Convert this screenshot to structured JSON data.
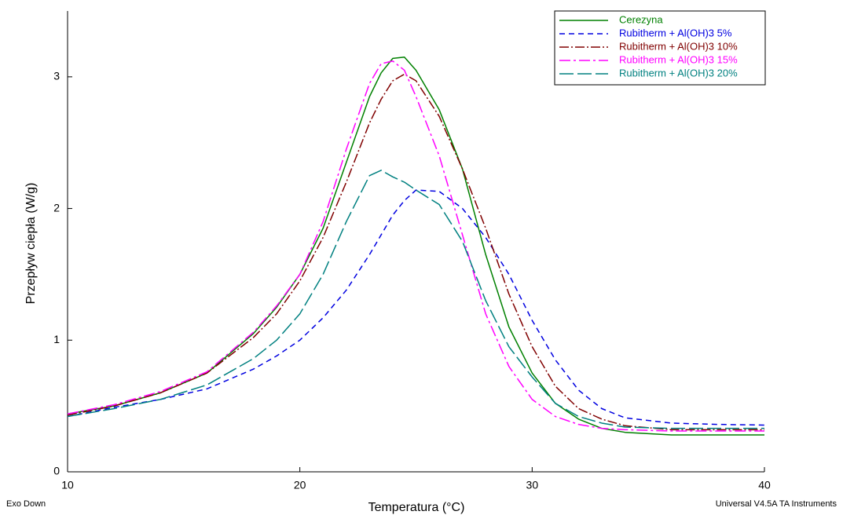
{
  "chart_data": {
    "type": "line",
    "xlabel": "Temperatura (°C)",
    "ylabel": "Przepływ ciepła (W/g)",
    "footer_left": "Exo Down",
    "footer_right": "Universal V4.5A TA Instruments",
    "xlim": [
      10,
      40
    ],
    "xticks": [
      10,
      20,
      30,
      40
    ],
    "ylim": [
      0,
      3.5
    ],
    "yticks": [
      0,
      1,
      2,
      3
    ],
    "legend": "upper right",
    "x": [
      10,
      12,
      14,
      16,
      18,
      19,
      20,
      21,
      22,
      23,
      23.5,
      24,
      24.5,
      25,
      26,
      27,
      28,
      29,
      30,
      31,
      32,
      33,
      34,
      36,
      38,
      40
    ],
    "series": [
      {
        "name": "Cerezyna",
        "color": "#008000",
        "dash": "none",
        "values": [
          0.44,
          0.5,
          0.6,
          0.75,
          1.05,
          1.25,
          1.5,
          1.85,
          2.35,
          2.85,
          3.03,
          3.14,
          3.15,
          3.05,
          2.75,
          2.3,
          1.65,
          1.1,
          0.75,
          0.52,
          0.4,
          0.33,
          0.3,
          0.28,
          0.28,
          0.28
        ]
      },
      {
        "name": "Rubitherm + Al(OH)3 5%",
        "color": "#0000e0",
        "dash": "7,5",
        "values": [
          0.42,
          0.49,
          0.55,
          0.63,
          0.78,
          0.88,
          1.0,
          1.17,
          1.38,
          1.65,
          1.8,
          1.95,
          2.06,
          2.14,
          2.13,
          2.0,
          1.78,
          1.5,
          1.15,
          0.85,
          0.62,
          0.48,
          0.41,
          0.37,
          0.36,
          0.355
        ]
      },
      {
        "name": "Rubitherm + Al(OH)3 10%",
        "color": "#800000",
        "dash": "12,3,2,3",
        "values": [
          0.43,
          0.5,
          0.6,
          0.75,
          1.02,
          1.2,
          1.45,
          1.78,
          2.2,
          2.65,
          2.83,
          2.97,
          3.02,
          2.97,
          2.7,
          2.3,
          1.85,
          1.35,
          0.95,
          0.65,
          0.48,
          0.4,
          0.35,
          0.32,
          0.32,
          0.32
        ]
      },
      {
        "name": "Rubitherm + Al(OH)3 15%",
        "color": "#ff00ff",
        "dash": "14,4,3,4",
        "values": [
          0.44,
          0.51,
          0.61,
          0.76,
          1.06,
          1.26,
          1.5,
          1.9,
          2.45,
          2.95,
          3.1,
          3.12,
          3.05,
          2.85,
          2.4,
          1.8,
          1.2,
          0.8,
          0.55,
          0.42,
          0.36,
          0.33,
          0.32,
          0.31,
          0.31,
          0.31
        ]
      },
      {
        "name": "Rubitherm + Al(OH)3 20%",
        "color": "#008080",
        "dash": "18,5",
        "values": [
          0.42,
          0.48,
          0.55,
          0.66,
          0.86,
          1.0,
          1.2,
          1.5,
          1.9,
          2.25,
          2.29,
          2.24,
          2.2,
          2.14,
          2.03,
          1.75,
          1.3,
          0.95,
          0.72,
          0.52,
          0.42,
          0.37,
          0.34,
          0.33,
          0.33,
          0.33
        ]
      }
    ]
  }
}
